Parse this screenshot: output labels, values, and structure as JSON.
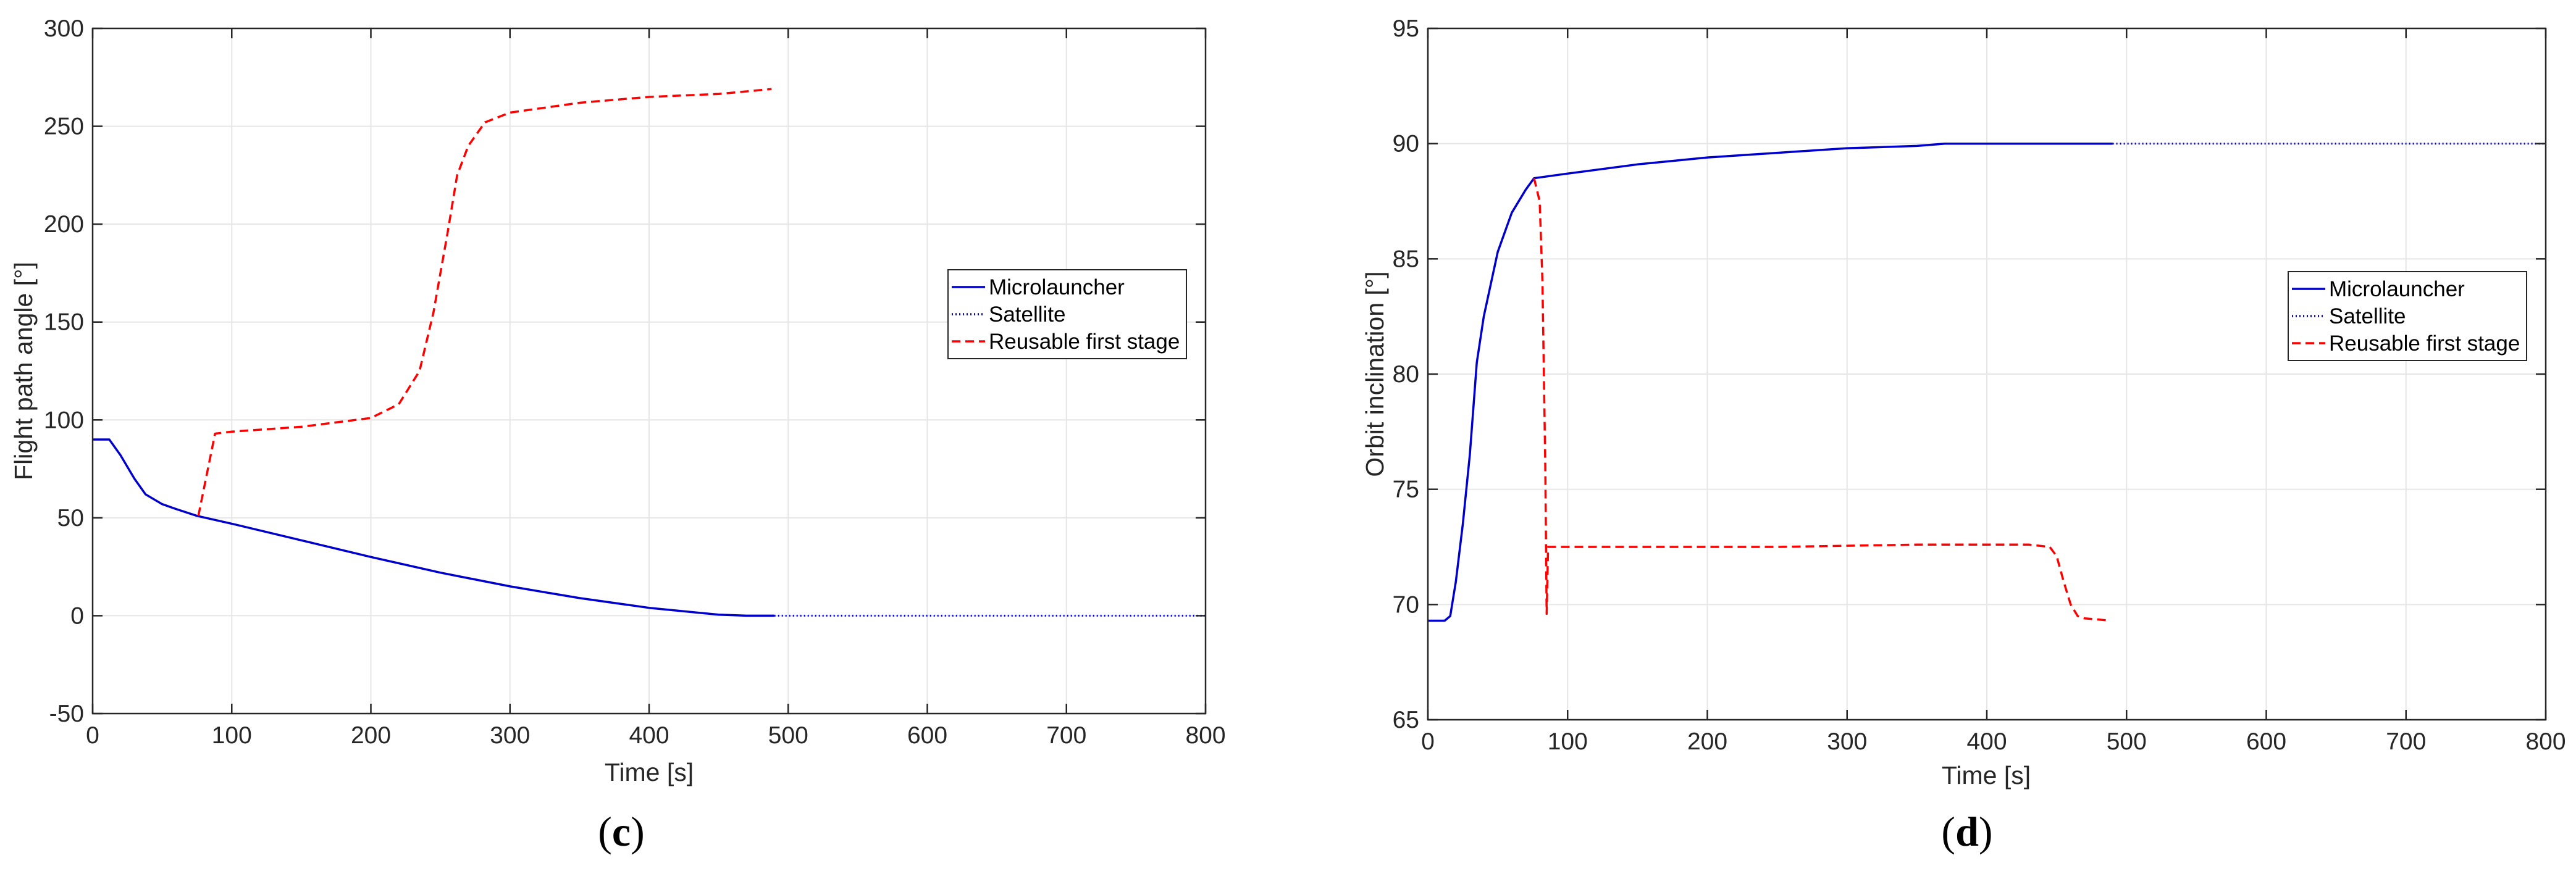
{
  "figure": {
    "panel_labels": [
      "c",
      "d"
    ]
  },
  "chart_data": [
    {
      "type": "line",
      "panel": "c",
      "xlabel": "Time [s]",
      "ylabel": "Flight path angle [°]",
      "xlim": [
        0,
        800
      ],
      "ylim": [
        -50,
        300
      ],
      "xticks": [
        0,
        100,
        200,
        300,
        400,
        500,
        600,
        700,
        800
      ],
      "yticks": [
        -50,
        0,
        50,
        100,
        150,
        200,
        250,
        300
      ],
      "grid": true,
      "legend_position": "right",
      "legend": [
        "Microlauncher",
        "Satellite",
        "Reusable first stage"
      ],
      "series": [
        {
          "name": "Microlauncher",
          "style": "solid",
          "color": "#0000cc",
          "x": [
            0,
            12,
            20,
            30,
            38,
            50,
            60,
            75,
            100,
            150,
            200,
            250,
            300,
            350,
            400,
            450,
            470,
            490
          ],
          "y": [
            90,
            90,
            82,
            70,
            62,
            57,
            54.5,
            51,
            47,
            38.5,
            30,
            22,
            15,
            9,
            4,
            0.5,
            0,
            0
          ]
        },
        {
          "name": "Satellite",
          "style": "dotted",
          "color": "#0000cc",
          "x": [
            490,
            800
          ],
          "y": [
            0,
            0
          ]
        },
        {
          "name": "Reusable first stage",
          "style": "dashed",
          "color": "#ff0000",
          "x": [
            76,
            88,
            100,
            150,
            200,
            220,
            235,
            245,
            250,
            255,
            262,
            270,
            282,
            300,
            350,
            400,
            450,
            488
          ],
          "y": [
            51,
            93,
            94,
            96.5,
            101,
            108,
            125,
            155,
            175,
            195,
            225,
            240,
            252,
            257,
            262,
            265,
            266.5,
            269
          ]
        }
      ]
    },
    {
      "type": "line",
      "panel": "d",
      "xlabel": "Time [s]",
      "ylabel": "Orbit inclination [°]",
      "xlim": [
        0,
        800
      ],
      "ylim": [
        65,
        95
      ],
      "xticks": [
        0,
        100,
        200,
        300,
        400,
        500,
        600,
        700,
        800
      ],
      "yticks": [
        65,
        70,
        75,
        80,
        85,
        90,
        95
      ],
      "grid": true,
      "legend_position": "right",
      "legend": [
        "Microlauncher",
        "Satellite",
        "Reusable first stage"
      ],
      "series": [
        {
          "name": "Microlauncher",
          "style": "solid",
          "color": "#0000cc",
          "x": [
            0,
            12,
            16,
            20,
            25,
            30,
            35,
            40,
            50,
            60,
            70,
            76,
            100,
            150,
            200,
            250,
            300,
            350,
            370,
            400,
            490
          ],
          "y": [
            69.3,
            69.3,
            69.5,
            71,
            73.5,
            76.5,
            80.5,
            82.5,
            85.3,
            87,
            88,
            88.5,
            88.7,
            89.1,
            89.4,
            89.6,
            89.8,
            89.9,
            90,
            90,
            90
          ]
        },
        {
          "name": "Satellite",
          "style": "dotted",
          "color": "#0000cc",
          "x": [
            490,
            800
          ],
          "y": [
            90,
            90
          ]
        },
        {
          "name": "Reusable first stage",
          "style": "dashed",
          "color": "#ff0000",
          "x": [
            76,
            80,
            82,
            84,
            85,
            86,
            90,
            150,
            200,
            250,
            300,
            350,
            400,
            430,
            445,
            450,
            455,
            460,
            465,
            470,
            480,
            488
          ],
          "y": [
            88.5,
            87.5,
            84,
            76,
            69.6,
            72.5,
            72.5,
            72.5,
            72.5,
            72.5,
            72.55,
            72.6,
            72.6,
            72.6,
            72.5,
            72.1,
            71,
            70,
            69.5,
            69.4,
            69.35,
            69.3
          ]
        }
      ]
    }
  ]
}
